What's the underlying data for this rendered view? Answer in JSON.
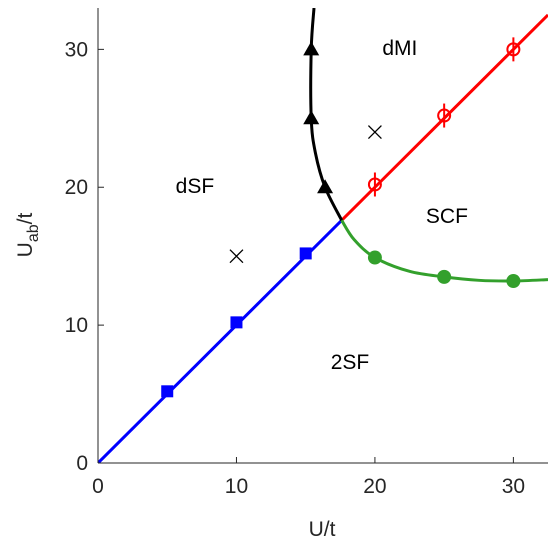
{
  "chart_data": {
    "type": "scatter",
    "xlabel": "U/t",
    "ylabel": "U_ab/t",
    "ylabel_main": "U",
    "ylabel_sub": "ab",
    "ylabel_suffix": "/t",
    "xlim": [
      0,
      32.5
    ],
    "ylim": [
      0,
      33
    ],
    "x_ticks": [
      0,
      10,
      20,
      30
    ],
    "y_ticks": [
      0,
      10,
      20,
      30
    ],
    "grid": false,
    "series": [
      {
        "color": "#0000ff",
        "marker": "square",
        "points": [
          [
            5,
            5.2
          ],
          [
            10,
            10.2
          ],
          [
            15,
            15.2
          ]
        ],
        "line": [
          [
            0,
            0
          ],
          [
            17.6,
            17.6
          ]
        ]
      },
      {
        "color": "#ff0000",
        "marker": "circle-errorbar",
        "points": [
          [
            20,
            20.2
          ],
          [
            25,
            25.2
          ],
          [
            30,
            30
          ]
        ],
        "line": [
          [
            17.6,
            17.6
          ],
          [
            32.5,
            32.5
          ]
        ]
      },
      {
        "color": "#000000",
        "marker": "triangle",
        "points": [
          [
            15.4,
            30
          ],
          [
            15.4,
            25
          ],
          [
            16.4,
            20
          ]
        ],
        "line": [
          [
            15.6,
            33
          ],
          [
            15.4,
            30
          ],
          [
            15.4,
            25
          ],
          [
            15.7,
            22.5
          ],
          [
            16.4,
            20
          ],
          [
            17.6,
            17.6
          ]
        ]
      },
      {
        "color": "#33a02c",
        "marker": "circle",
        "points": [
          [
            20,
            14.9
          ],
          [
            25,
            13.5
          ],
          [
            30,
            13.2
          ]
        ],
        "line": [
          [
            17.6,
            17.6
          ],
          [
            18.5,
            16.2
          ],
          [
            20,
            14.9
          ],
          [
            22.5,
            13.9
          ],
          [
            25,
            13.5
          ],
          [
            27.5,
            13.25
          ],
          [
            30,
            13.2
          ],
          [
            32.5,
            13.3
          ]
        ]
      }
    ],
    "cross_markers": [
      [
        10,
        15
      ],
      [
        20,
        24
      ]
    ],
    "annotations": [
      {
        "text": "dMI",
        "x": 21.8,
        "y": 29.6
      },
      {
        "text": "dSF",
        "x": 7,
        "y": 19.6
      },
      {
        "text": "SCF",
        "x": 25.2,
        "y": 17.4
      },
      {
        "text": "2SF",
        "x": 18.2,
        "y": 6.8
      }
    ]
  }
}
